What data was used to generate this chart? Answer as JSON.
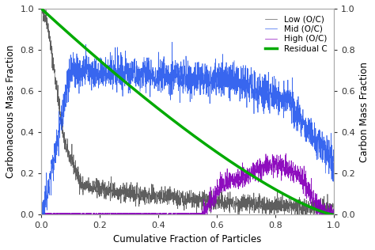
{
  "title": "",
  "xlabel": "Cumulative Fraction of Particles",
  "ylabel_left": "Carbonaceous Mass Fraction",
  "ylabel_right": "Carbon Mass Fraction",
  "xlim": [
    0.0,
    1.0
  ],
  "ylim": [
    0.0,
    1.0
  ],
  "xticks": [
    0.0,
    0.2,
    0.4,
    0.6,
    0.8,
    1.0
  ],
  "yticks": [
    0.0,
    0.2,
    0.4,
    0.6,
    0.8,
    1.0
  ],
  "legend_labels": [
    "Low (O/C)",
    "Mid (O/C)",
    "High (O/C)",
    "Residual C"
  ],
  "legend_colors": [
    "#555555",
    "#2255ee",
    "#8800bb",
    "#00aa00"
  ],
  "background_color": "#ffffff",
  "n_points": 2000,
  "seed": 42
}
